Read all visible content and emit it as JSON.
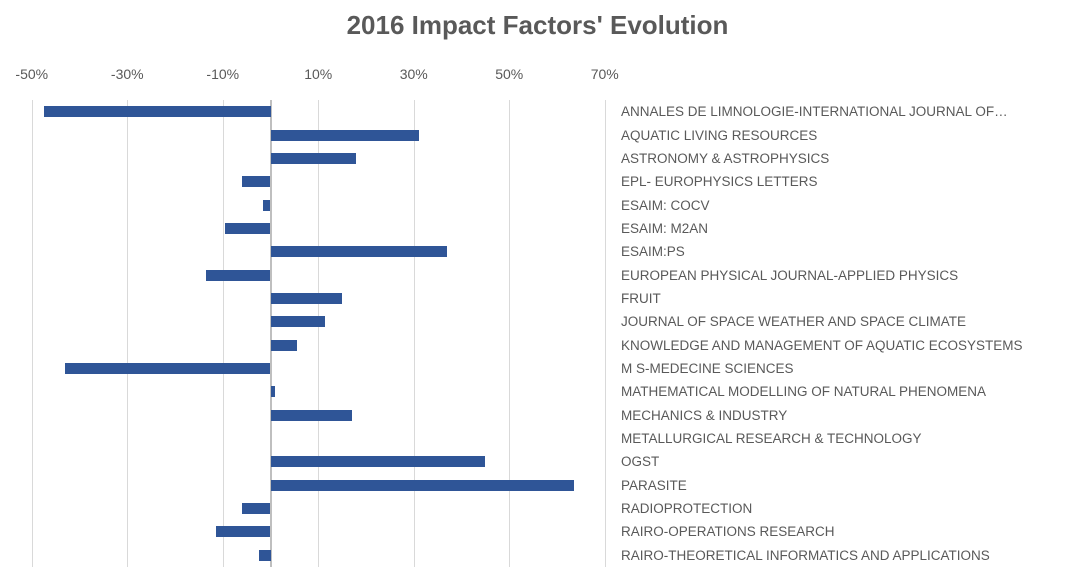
{
  "chart_data": {
    "type": "bar",
    "orientation": "horizontal",
    "title": "2016 Impact Factors' Evolution",
    "categories": [
      "ANNALES DE LIMNOLOGIE-INTERNATIONAL JOURNAL OF…",
      "AQUATIC LIVING RESOURCES",
      "ASTRONOMY & ASTROPHYSICS",
      "EPL- EUROPHYSICS LETTERS",
      "ESAIM: COCV",
      "ESAIM: M2AN",
      "ESAIM:PS",
      "EUROPEAN PHYSICAL JOURNAL-APPLIED PHYSICS",
      "FRUIT",
      "JOURNAL OF SPACE WEATHER AND SPACE CLIMATE",
      "KNOWLEDGE AND MANAGEMENT OF AQUATIC ECOSYSTEMS",
      "M S-MEDECINE SCIENCES",
      "MATHEMATICAL MODELLING OF NATURAL PHENOMENA",
      "MECHANICS & INDUSTRY",
      "METALLURGICAL RESEARCH & TECHNOLOGY",
      "OGST",
      "PARASITE",
      "RADIOPROTECTION",
      "RAIRO-OPERATIONS RESEARCH",
      "RAIRO-THEORETICAL INFORMATICS AND APPLICATIONS"
    ],
    "values": [
      -47.5,
      31,
      18,
      -6,
      -1.5,
      -9.5,
      37,
      -13.5,
      15,
      11.5,
      5.5,
      -43,
      1,
      17,
      0,
      45,
      63.5,
      -6,
      -11.5,
      -2.5
    ],
    "value_unit": "percent",
    "xlabel": "",
    "ylabel": "",
    "x_tick_labels": [
      "-50%",
      "-30%",
      "-10%",
      "10%",
      "30%",
      "50%",
      "70%"
    ],
    "x_tick_values": [
      -50,
      -30,
      -10,
      10,
      30,
      50,
      70
    ],
    "xlim": [
      -52,
      72
    ],
    "grid": "vertical",
    "legend": "none",
    "bar_color": "#2f5597",
    "gridline_color": "#d9d9d9",
    "zero_line_color": "#bfbfbf",
    "axis_text_color": "#595959",
    "title_color": "#595959",
    "background_color": "#ffffff"
  }
}
